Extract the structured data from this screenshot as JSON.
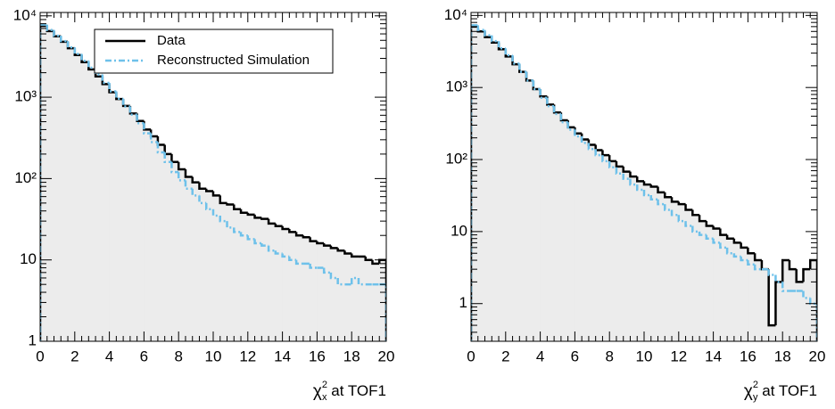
{
  "chart_data": [
    {
      "type": "histogram",
      "x_label": "χ",
      "x_label_sup": "2",
      "x_label_sub": "x",
      "x_label_rest": " at TOF1",
      "bins": [
        0,
        0.4,
        0.8,
        1.2,
        1.6,
        2,
        2.4,
        2.8,
        3.2,
        3.6,
        4,
        4.4,
        4.8,
        5.2,
        5.6,
        6,
        6.4,
        6.8,
        7.2,
        7.6,
        8,
        8.4,
        8.8,
        9.2,
        9.6,
        10,
        10.4,
        10.8,
        11.2,
        11.6,
        12,
        12.4,
        12.8,
        13.2,
        13.6,
        14,
        14.4,
        14.8,
        15.2,
        15.6,
        16,
        16.4,
        16.8,
        17.2,
        17.6,
        18,
        18.4,
        18.8,
        19.2,
        19.6,
        20
      ],
      "series": [
        {
          "name": "Data",
          "color": "#000000",
          "fill": "#ececec",
          "dash": "none",
          "values": [
            7500,
            6500,
            5600,
            4800,
            4000,
            3300,
            2700,
            2200,
            1800,
            1450,
            1150,
            950,
            780,
            630,
            510,
            400,
            330,
            260,
            200,
            160,
            130,
            105,
            90,
            75,
            70,
            62,
            50,
            48,
            42,
            38,
            36,
            33,
            32,
            28,
            26,
            24,
            22,
            20,
            19,
            17,
            16,
            15,
            14,
            13,
            12,
            11,
            11,
            10,
            9,
            10
          ]
        },
        {
          "name": "Reconstructed Simulation",
          "color": "#6ec1ea",
          "fill": "none",
          "dash": "7 3 2 3",
          "values": [
            7800,
            6700,
            5700,
            4900,
            4100,
            3400,
            2800,
            2300,
            1900,
            1500,
            1180,
            960,
            770,
            610,
            480,
            360,
            280,
            210,
            160,
            120,
            95,
            75,
            62,
            50,
            42,
            35,
            30,
            25,
            22,
            20,
            18,
            16,
            15,
            13,
            12,
            11,
            10,
            9,
            9,
            8,
            8,
            7,
            6,
            5,
            5,
            6,
            5,
            5,
            5,
            5
          ]
        }
      ],
      "xlim": [
        0,
        20
      ],
      "xticks": [
        0,
        2,
        4,
        6,
        8,
        10,
        12,
        14,
        16,
        18,
        20
      ],
      "ylim": [
        1,
        11000
      ],
      "log_y": true,
      "yticks": [
        {
          "value": 1,
          "label": "1"
        },
        {
          "value": 10,
          "label": "10"
        },
        {
          "value": 100,
          "label": "10²"
        },
        {
          "value": 1000,
          "label": "10³"
        },
        {
          "value": 10000,
          "label": "10⁴"
        }
      ],
      "legend": "upper center"
    },
    {
      "type": "histogram",
      "x_label": "χ",
      "x_label_sup": "2",
      "x_label_sub": "y",
      "x_label_rest": " at TOF1",
      "bins": [
        0,
        0.4,
        0.8,
        1.2,
        1.6,
        2,
        2.4,
        2.8,
        3.2,
        3.6,
        4,
        4.4,
        4.8,
        5.2,
        5.6,
        6,
        6.4,
        6.8,
        7.2,
        7.6,
        8,
        8.4,
        8.8,
        9.2,
        9.6,
        10,
        10.4,
        10.8,
        11.2,
        11.6,
        12,
        12.4,
        12.8,
        13.2,
        13.6,
        14,
        14.4,
        14.8,
        15.2,
        15.6,
        16,
        16.4,
        16.8,
        17.2,
        17.6,
        18,
        18.4,
        18.8,
        19.2,
        19.6,
        20
      ],
      "series": [
        {
          "color": "#000000",
          "fill": "#ececec",
          "dash": "none",
          "values": [
            7000,
            6000,
            5000,
            4200,
            3400,
            2700,
            2100,
            1650,
            1250,
            950,
            750,
            580,
            450,
            350,
            280,
            230,
            190,
            160,
            135,
            115,
            95,
            80,
            68,
            58,
            50,
            45,
            42,
            35,
            30,
            26,
            24,
            20,
            17,
            14,
            12,
            11,
            9,
            8,
            7,
            6,
            5,
            4,
            3,
            0.5,
            2,
            4,
            3,
            2,
            3,
            4
          ]
        },
        {
          "color": "#6ec1ea",
          "fill": "none",
          "dash": "7 3 2 3",
          "values": [
            7300,
            6300,
            5300,
            4400,
            3500,
            2800,
            2150,
            1650,
            1250,
            950,
            720,
            550,
            430,
            330,
            260,
            210,
            170,
            140,
            115,
            95,
            78,
            64,
            54,
            45,
            38,
            32,
            28,
            24,
            20,
            17,
            14,
            12,
            10,
            9,
            8,
            7,
            6,
            5,
            4.5,
            4,
            3.5,
            3,
            3,
            2.5,
            2,
            1.5,
            1.5,
            1.5,
            1.2,
            1
          ]
        }
      ],
      "xlim": [
        0,
        20
      ],
      "xticks": [
        0,
        2,
        4,
        6,
        8,
        10,
        12,
        14,
        16,
        18,
        20
      ],
      "ylim": [
        0.3,
        11000
      ],
      "log_y": true,
      "yticks": [
        {
          "value": 1,
          "label": "1"
        },
        {
          "value": 10,
          "label": "10"
        },
        {
          "value": 100,
          "label": "10²"
        },
        {
          "value": 1000,
          "label": "10³"
        },
        {
          "value": 10000,
          "label": "10⁴"
        }
      ]
    }
  ]
}
